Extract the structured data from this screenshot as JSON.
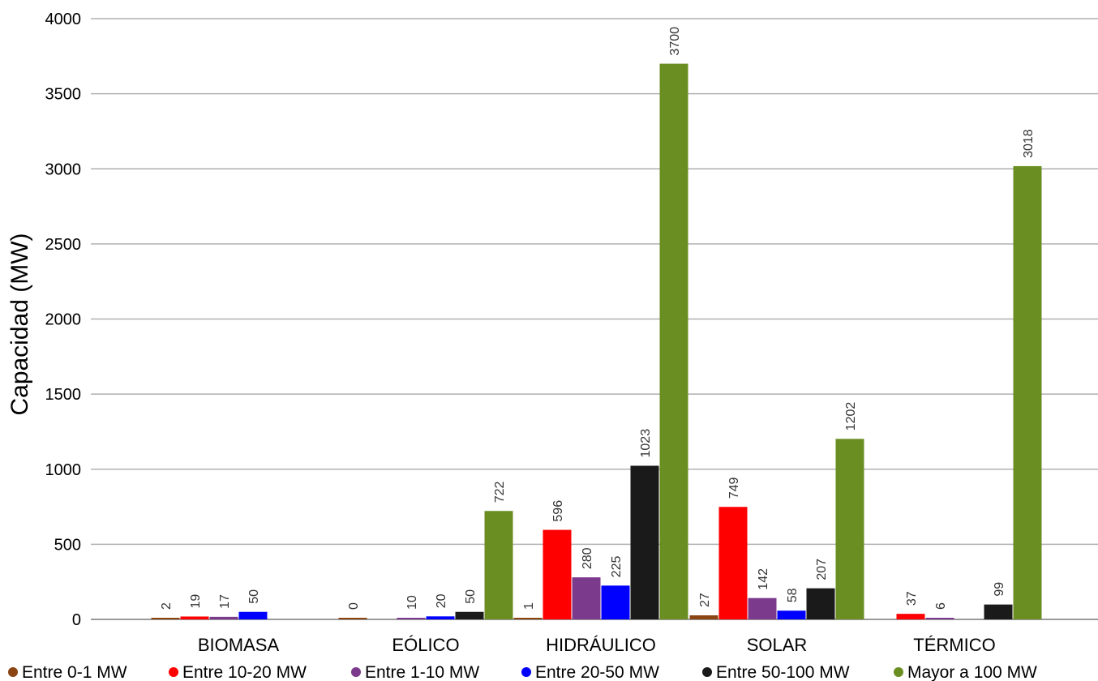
{
  "chart_data": {
    "type": "bar",
    "title": "",
    "xlabel": "",
    "ylabel": "Capacidad (MW)",
    "ylim": [
      0,
      4000
    ],
    "yticks": [
      0,
      500,
      1000,
      1500,
      2000,
      2500,
      3000,
      3500,
      4000
    ],
    "grid": true,
    "legend_position": "bottom",
    "categories": [
      "BIOMASA",
      "EÓLICO",
      "HIDRÁULICO",
      "SOLAR",
      "TÉRMICO"
    ],
    "series": [
      {
        "name": "Entre 0-1 MW",
        "color": "#8B4513",
        "values": [
          2,
          0,
          1,
          27,
          null
        ]
      },
      {
        "name": "Entre 10-20 MW",
        "color": "#FF0000",
        "values": [
          19,
          null,
          596,
          749,
          37
        ]
      },
      {
        "name": "Entre 1-10 MW",
        "color": "#7B3A8C",
        "values": [
          17,
          10,
          280,
          142,
          6
        ]
      },
      {
        "name": "Entre 20-50 MW",
        "color": "#0000FF",
        "values": [
          50,
          20,
          225,
          58,
          null
        ]
      },
      {
        "name": "Entre 50-100 MW",
        "color": "#1A1A1A",
        "values": [
          null,
          50,
          1023,
          207,
          99
        ]
      },
      {
        "name": "Mayor a 100 MW",
        "color": "#6B8E23",
        "values": [
          null,
          722,
          3700,
          1202,
          3018
        ]
      }
    ]
  }
}
